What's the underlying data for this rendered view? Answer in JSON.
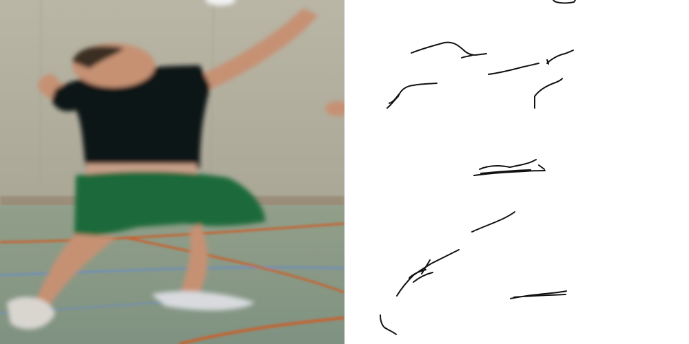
{
  "scene": {
    "left_panel": {
      "content": "photo",
      "colors": {
        "wall": "#b8b5a6",
        "wall_shadow": "#a9a695",
        "floor": "#8a9b86",
        "floor_line_orange": "#c8602e",
        "floor_line_blue": "#6f8fb7",
        "shirt": "#101214",
        "shorts": "#1d6a3a",
        "skin": "#c69173",
        "hair": "#3b2d22"
      }
    },
    "right_panel": {
      "content": "edge-map",
      "colors": {
        "background": "#ffffff",
        "stroke": "#111111"
      }
    }
  }
}
